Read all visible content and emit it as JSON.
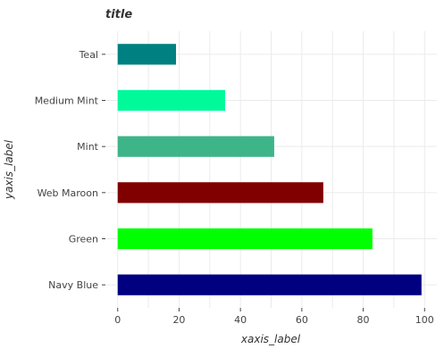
{
  "chart_data": {
    "type": "bar",
    "orientation": "horizontal",
    "title": "title",
    "xlabel": "xaxis_label",
    "ylabel": "yaxis_label",
    "categories": [
      "Navy Blue",
      "Green",
      "Web Maroon",
      "Mint",
      "Medium Mint",
      "Teal"
    ],
    "values": [
      99,
      83,
      67,
      51,
      35,
      19
    ],
    "colors": [
      "#000080",
      "#00ff00",
      "#800000",
      "#3eb489",
      "#00fa9a",
      "#008080"
    ],
    "xlim": [
      -4,
      104
    ],
    "xticks": [
      0,
      20,
      40,
      60,
      80,
      100
    ],
    "grid": true,
    "legend": "none"
  }
}
